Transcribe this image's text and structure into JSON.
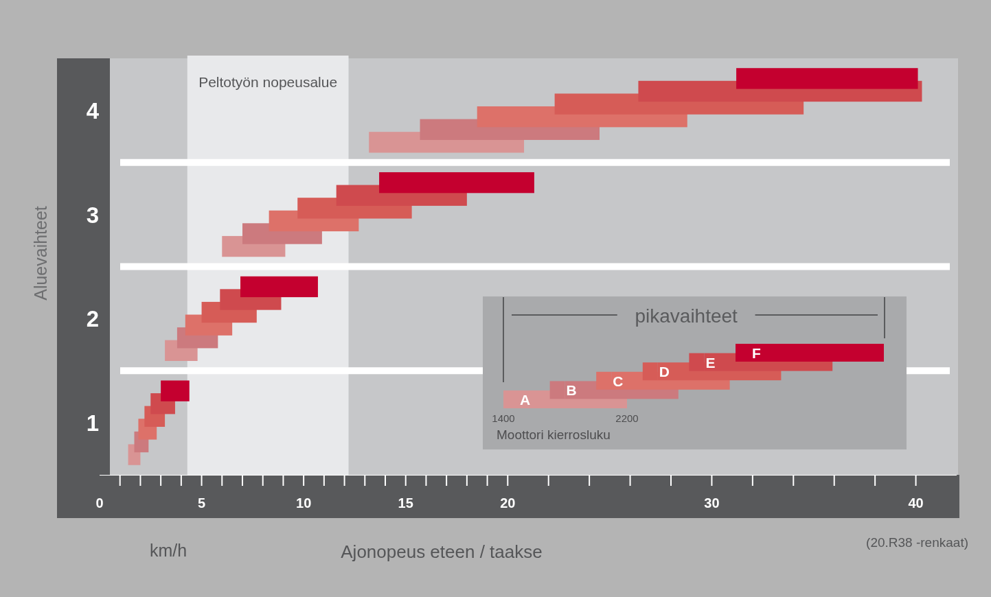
{
  "chart_data": {
    "type": "bar",
    "orientation": "horizontal",
    "xlabel": "Ajonopeus eteen / taakse",
    "ylabel": "Aluevaihteet",
    "legend_title": "pikavaihteet",
    "legend": "bottom right",
    "grid": "y",
    "categories": [
      "4",
      "3",
      "2",
      "1"
    ],
    "xlim": [
      0,
      42
    ],
    "xticks": [
      0,
      {
        "value": 1,
        "label": null
      },
      {
        "value": 2,
        "label": null
      },
      {
        "value": 3,
        "label": null
      },
      {
        "value": 4,
        "label": null
      },
      5,
      {
        "value": 6,
        "label": null
      },
      {
        "value": 7,
        "label": null
      },
      {
        "value": 8,
        "label": null
      },
      {
        "value": 9,
        "label": null
      },
      10,
      {
        "value": 11,
        "label": null
      },
      {
        "value": 12,
        "label": null
      },
      {
        "value": 13,
        "label": null
      },
      {
        "value": 14,
        "label": null
      },
      15,
      {
        "value": 16,
        "label": null
      },
      {
        "value": 17,
        "label": null
      },
      {
        "value": 18,
        "label": null
      },
      {
        "value": 19,
        "label": null
      },
      20,
      {
        "value": 22,
        "label": null
      },
      {
        "value": 24,
        "label": null
      },
      {
        "value": 26,
        "label": null
      },
      {
        "value": 28,
        "label": null
      },
      30,
      {
        "value": 32,
        "label": null
      },
      {
        "value": 34,
        "label": null
      },
      {
        "value": 36,
        "label": null
      },
      {
        "value": 38,
        "label": null
      },
      40
    ],
    "series": [
      {
        "name": "A",
        "color": "#d99494",
        "base": [
          13.2,
          6.0,
          3.2,
          1.4
        ],
        "values": [
          7.6,
          3.1,
          1.6,
          0.6
        ]
      },
      {
        "name": "B",
        "color": "#cc7a7e",
        "base": [
          15.7,
          7.0,
          3.8,
          1.7
        ],
        "values": [
          8.8,
          3.9,
          2.0,
          0.7
        ]
      },
      {
        "name": "C",
        "color": "#dd7169",
        "base": [
          18.5,
          8.3,
          4.2,
          1.9
        ],
        "values": [
          10.3,
          4.4,
          2.3,
          0.9
        ]
      },
      {
        "name": "D",
        "color": "#d65c57",
        "base": [
          22.3,
          9.7,
          5.0,
          2.2
        ],
        "values": [
          12.2,
          5.6,
          2.7,
          1.0
        ]
      },
      {
        "name": "E",
        "color": "#cf4a4e",
        "base": [
          26.4,
          11.6,
          5.9,
          2.5
        ],
        "values": [
          13.9,
          6.4,
          3.0,
          1.2
        ]
      },
      {
        "name": "F",
        "color": "#c4002f",
        "base": [
          31.2,
          13.7,
          6.9,
          3.0
        ],
        "values": [
          8.9,
          7.6,
          3.8,
          1.4
        ]
      }
    ],
    "bands": [
      {
        "axis": "x",
        "from": 4.3,
        "to": 12.2,
        "label": "Peltotyön nopeusalue",
        "color": "#e8e9eb"
      }
    ],
    "annotations": [
      "km/h",
      "(20.R38 -renkaat)",
      "1400",
      "2200",
      "Moottori kierrosluku"
    ]
  }
}
